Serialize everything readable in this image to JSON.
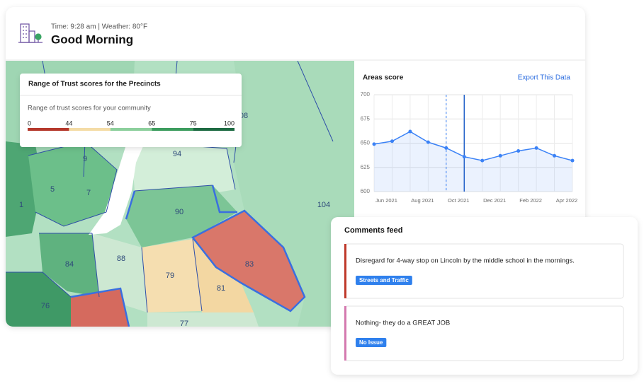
{
  "header": {
    "time_weather": "Time: 9:28 am | Weather: 80°F",
    "greeting": "Good Morning"
  },
  "legend": {
    "title": "Range of Trust scores for the Precincts",
    "subtitle": "Range of trust scores for your community",
    "ticks": [
      0,
      44,
      54,
      65,
      75,
      100
    ],
    "colors": [
      "#b5382c",
      "#f4dca6",
      "#8ccf9c",
      "#3c9c5e",
      "#1d6a42"
    ]
  },
  "map": {
    "precincts": [
      "08",
      "94",
      "9",
      "5",
      "7",
      "1",
      "90",
      "104",
      "88",
      "84",
      "83",
      "79",
      "81",
      "76",
      "77"
    ]
  },
  "chart_data": {
    "type": "line",
    "title": "Areas score",
    "action": "Export This Data",
    "categories": [
      null,
      "Jun 2021",
      null,
      "Aug 2021",
      null,
      "Oct 2021",
      null,
      "Dec 2021",
      null,
      "Feb 2022",
      null,
      "Apr 2022"
    ],
    "values": [
      649,
      652,
      662,
      651,
      645,
      636,
      632,
      637,
      642,
      645,
      637,
      632
    ],
    "color": "#3b82f6",
    "ylim": [
      600,
      700
    ],
    "yticks": [
      600,
      625,
      650,
      675,
      700
    ],
    "grid": true
  },
  "comments": {
    "title": "Comments feed",
    "items": [
      {
        "text": "Disregard for 4-way stop on Lincoln by the middle school in the mornings.",
        "tag": "Streets and Traffic",
        "color": "#c0392b"
      },
      {
        "text": "Nothing- they do a GREAT JOB",
        "tag": "No Issue",
        "color": "#d57ab0"
      }
    ]
  }
}
